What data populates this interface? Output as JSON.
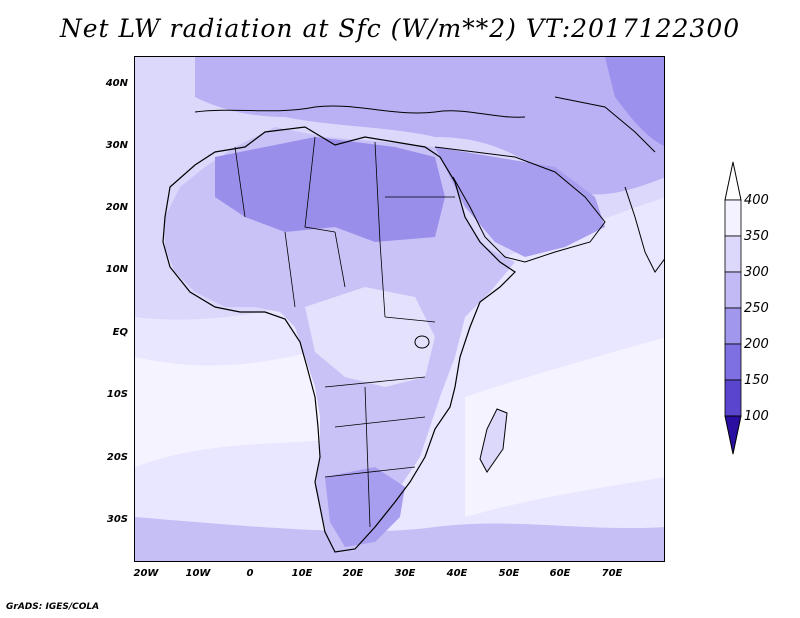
{
  "title": "Net LW radiation at Sfc (W/m**2) VT:2017122300",
  "credit": "GrADS: IGES/COLA",
  "lat_labels": [
    "40N",
    "30N",
    "20N",
    "10N",
    "EQ",
    "10S",
    "20S",
    "30S"
  ],
  "lon_labels": [
    "20W",
    "10W",
    "0",
    "10E",
    "20E",
    "30E",
    "40E",
    "50E",
    "60E",
    "70E"
  ],
  "colorbar": {
    "levels": [
      "400",
      "350",
      "300",
      "250",
      "200",
      "150",
      "100"
    ],
    "colors": [
      "#f4f2ff",
      "#dcd8fb",
      "#c1baf5",
      "#a198ee",
      "#7e70e2",
      "#5a45cf",
      "#3a1fb2"
    ]
  },
  "colors": {
    "ocean_low": "#d8d4fb",
    "ocean_high": "#f2f1ff",
    "land_high": "#9a8eeb",
    "coast": "#000000"
  }
}
